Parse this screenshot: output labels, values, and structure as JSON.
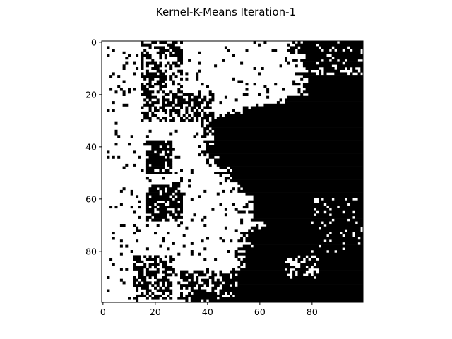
{
  "chart_data": {
    "type": "heatmap",
    "title": "Kernel-K-Means Iteration-1",
    "xlabel": "",
    "ylabel": "",
    "grid": false,
    "colormap": "binary",
    "colors": {
      "cluster_a": "#ffffff",
      "cluster_b": "#000000",
      "frame": "#000000"
    },
    "shape": [
      100,
      100
    ],
    "xlim": [
      -0.5,
      99.5
    ],
    "ylim": [
      99.5,
      -0.5
    ],
    "x_ticks": [
      0,
      20,
      40,
      60,
      80
    ],
    "y_ticks": [
      0,
      20,
      40,
      60,
      80
    ],
    "x_tick_labels": [
      "0",
      "20",
      "40",
      "60",
      "80"
    ],
    "y_tick_labels": [
      "0",
      "20",
      "40",
      "60",
      "80"
    ],
    "boundary": {
      "description": "column index where the black (right) cluster begins, per row",
      "rows": [
        0,
        10,
        20,
        30,
        40,
        50,
        60,
        70,
        80,
        90,
        99
      ],
      "cols": [
        76,
        80,
        78,
        40,
        40,
        48,
        56,
        60,
        55,
        50,
        48
      ]
    },
    "black_regions": [
      {
        "row_range": [
          0,
          30
        ],
        "col_range": [
          15,
          30
        ],
        "density": 0.5
      },
      {
        "row_range": [
          20,
          30
        ],
        "col_range": [
          30,
          42
        ],
        "density": 0.55
      },
      {
        "row_range": [
          38,
          50
        ],
        "col_range": [
          17,
          26
        ],
        "density": 0.8
      },
      {
        "row_range": [
          55,
          68
        ],
        "col_range": [
          17,
          30
        ],
        "density": 0.75
      },
      {
        "row_range": [
          82,
          98
        ],
        "col_range": [
          12,
          26
        ],
        "density": 0.55
      },
      {
        "row_range": [
          88,
          99
        ],
        "col_range": [
          30,
          50
        ],
        "density": 0.6
      }
    ],
    "white_islands": [
      {
        "row_range": [
          82,
          90
        ],
        "col_range": [
          70,
          82
        ],
        "density": 0.45
      },
      {
        "row_range": [
          0,
          12
        ],
        "col_range": [
          82,
          99
        ],
        "density": 0.18
      },
      {
        "row_range": [
          60,
          80
        ],
        "col_range": [
          80,
          99
        ],
        "density": 0.08
      }
    ]
  }
}
